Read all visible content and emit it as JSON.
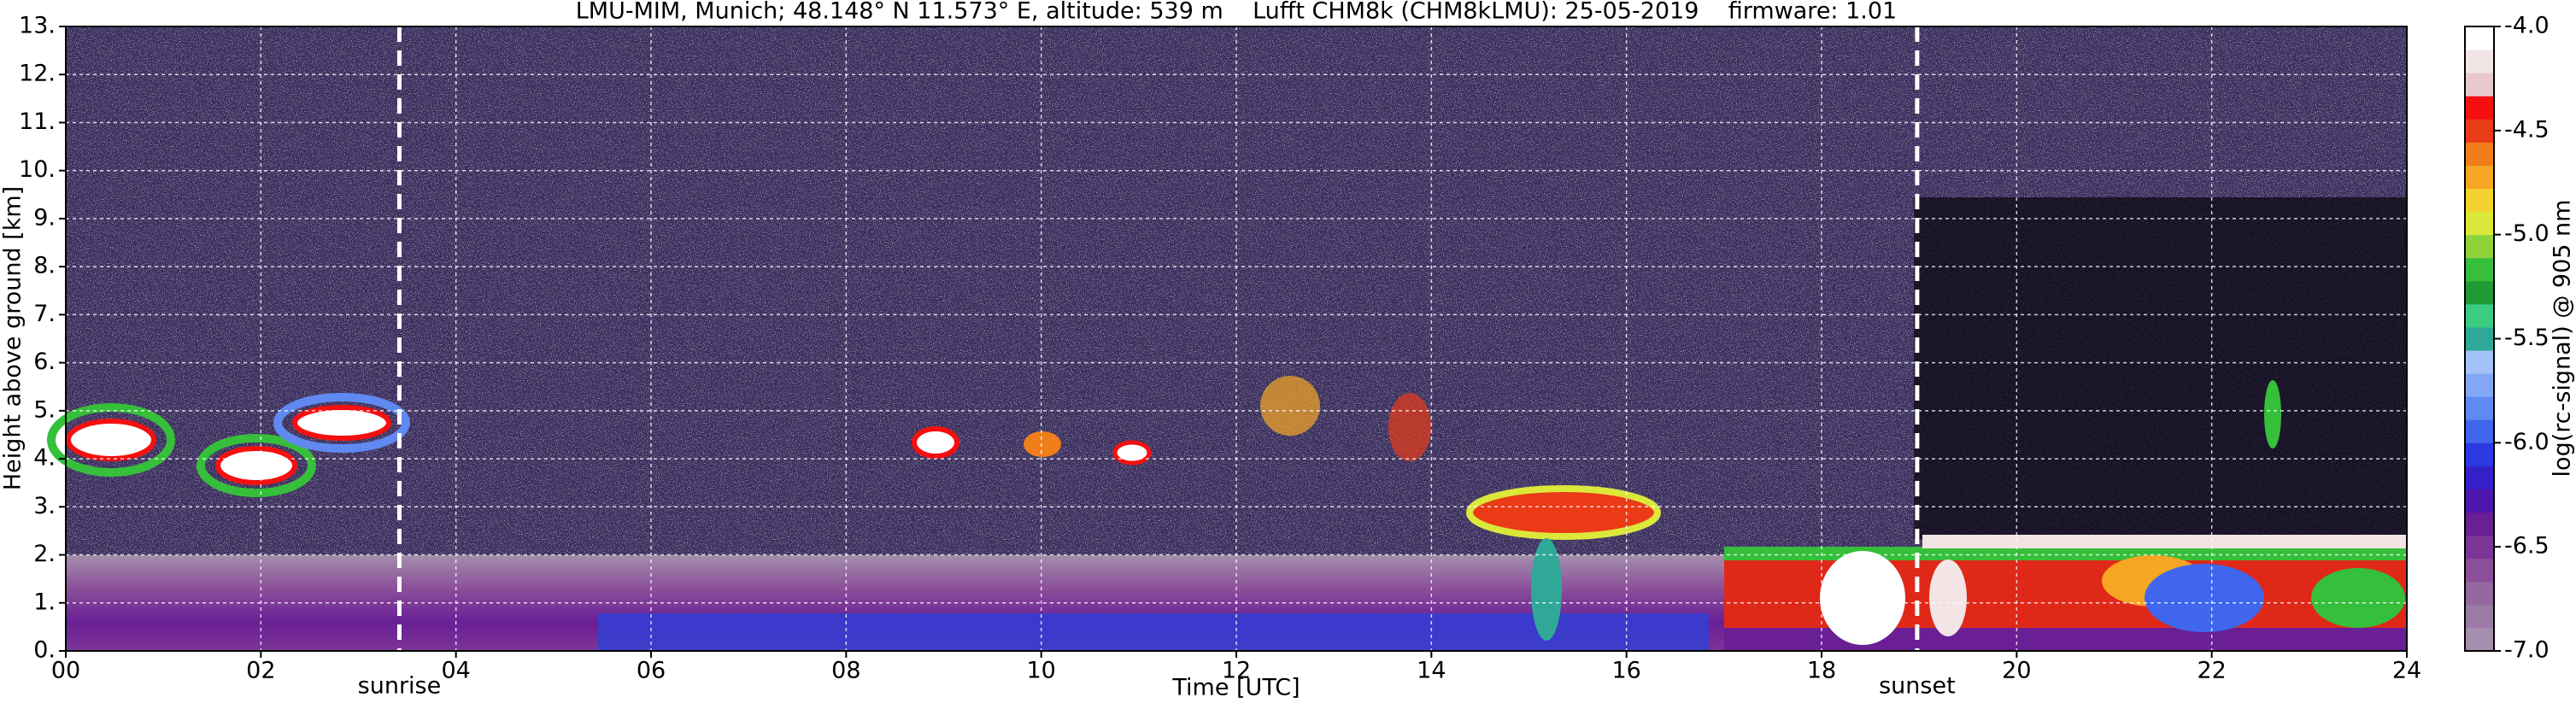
{
  "chart_data": {
    "type": "heatmap",
    "title": "LMU-MIM, Munich; 48.148° N 11.573° E, altitude: 539 m    Lufft CHM8k (CHM8kLMU): 25-05-2019    firmware: 1.01",
    "xlabel": "Time [UTC]",
    "ylabel": "Height above ground [km]",
    "xlim": [
      0,
      24
    ],
    "xticks": [
      {
        "value": 0,
        "label": "00"
      },
      {
        "value": 2,
        "label": "02"
      },
      {
        "value": 4,
        "label": "04"
      },
      {
        "value": 6,
        "label": "06"
      },
      {
        "value": 8,
        "label": "08"
      },
      {
        "value": 10,
        "label": "10"
      },
      {
        "value": 12,
        "label": "12"
      },
      {
        "value": 14,
        "label": "14"
      },
      {
        "value": 16,
        "label": "16"
      },
      {
        "value": 18,
        "label": "18"
      },
      {
        "value": 20,
        "label": "20"
      },
      {
        "value": 22,
        "label": "22"
      },
      {
        "value": 24,
        "label": "24"
      }
    ],
    "ylim": [
      0,
      13
    ],
    "yticks": [
      {
        "value": 0,
        "label": "0."
      },
      {
        "value": 1,
        "label": "1."
      },
      {
        "value": 2,
        "label": "2."
      },
      {
        "value": 3,
        "label": "3."
      },
      {
        "value": 4,
        "label": "4."
      },
      {
        "value": 5,
        "label": "5."
      },
      {
        "value": 6,
        "label": "6."
      },
      {
        "value": 7,
        "label": "7."
      },
      {
        "value": 8,
        "label": "8."
      },
      {
        "value": 9,
        "label": "9."
      },
      {
        "value": 10,
        "label": "10."
      },
      {
        "value": 11,
        "label": "11."
      },
      {
        "value": 12,
        "label": "12."
      },
      {
        "value": 13,
        "label": "13."
      }
    ],
    "grid": true,
    "annotations": [
      {
        "text": "sunrise",
        "x": 3.42
      },
      {
        "text": "sunset",
        "x": 18.98
      }
    ],
    "colorbar": {
      "label": "log(rc-signal) @ 905 nm",
      "lim": [
        -7,
        -4
      ],
      "ticks": [
        {
          "value": -7,
          "label": "-7.0"
        },
        {
          "value": -6.5,
          "label": "-6.5"
        },
        {
          "value": -6,
          "label": "-6.0"
        },
        {
          "value": -5.5,
          "label": "-5.5"
        },
        {
          "value": -5,
          "label": "-5.0"
        },
        {
          "value": -4.5,
          "label": "-4.5"
        },
        {
          "value": -4,
          "label": "-4.0"
        }
      ],
      "colors": [
        "#a48fac",
        "#9c7ba6",
        "#95679f",
        "#8b4f9a",
        "#7c3597",
        "#6a1f95",
        "#4c17aa",
        "#3520c8",
        "#2a3ae0",
        "#4066ee",
        "#6089f2",
        "#82a7f5",
        "#a3c2f8",
        "#2fa898",
        "#3ccb82",
        "#1f9a34",
        "#36bf3a",
        "#8fd33a",
        "#dbe83a",
        "#f4d030",
        "#f6a623",
        "#f07e1a",
        "#ea3a16",
        "#f51010",
        "#e8c8cc",
        "#f3e4e6",
        "#ffffff"
      ]
    }
  }
}
